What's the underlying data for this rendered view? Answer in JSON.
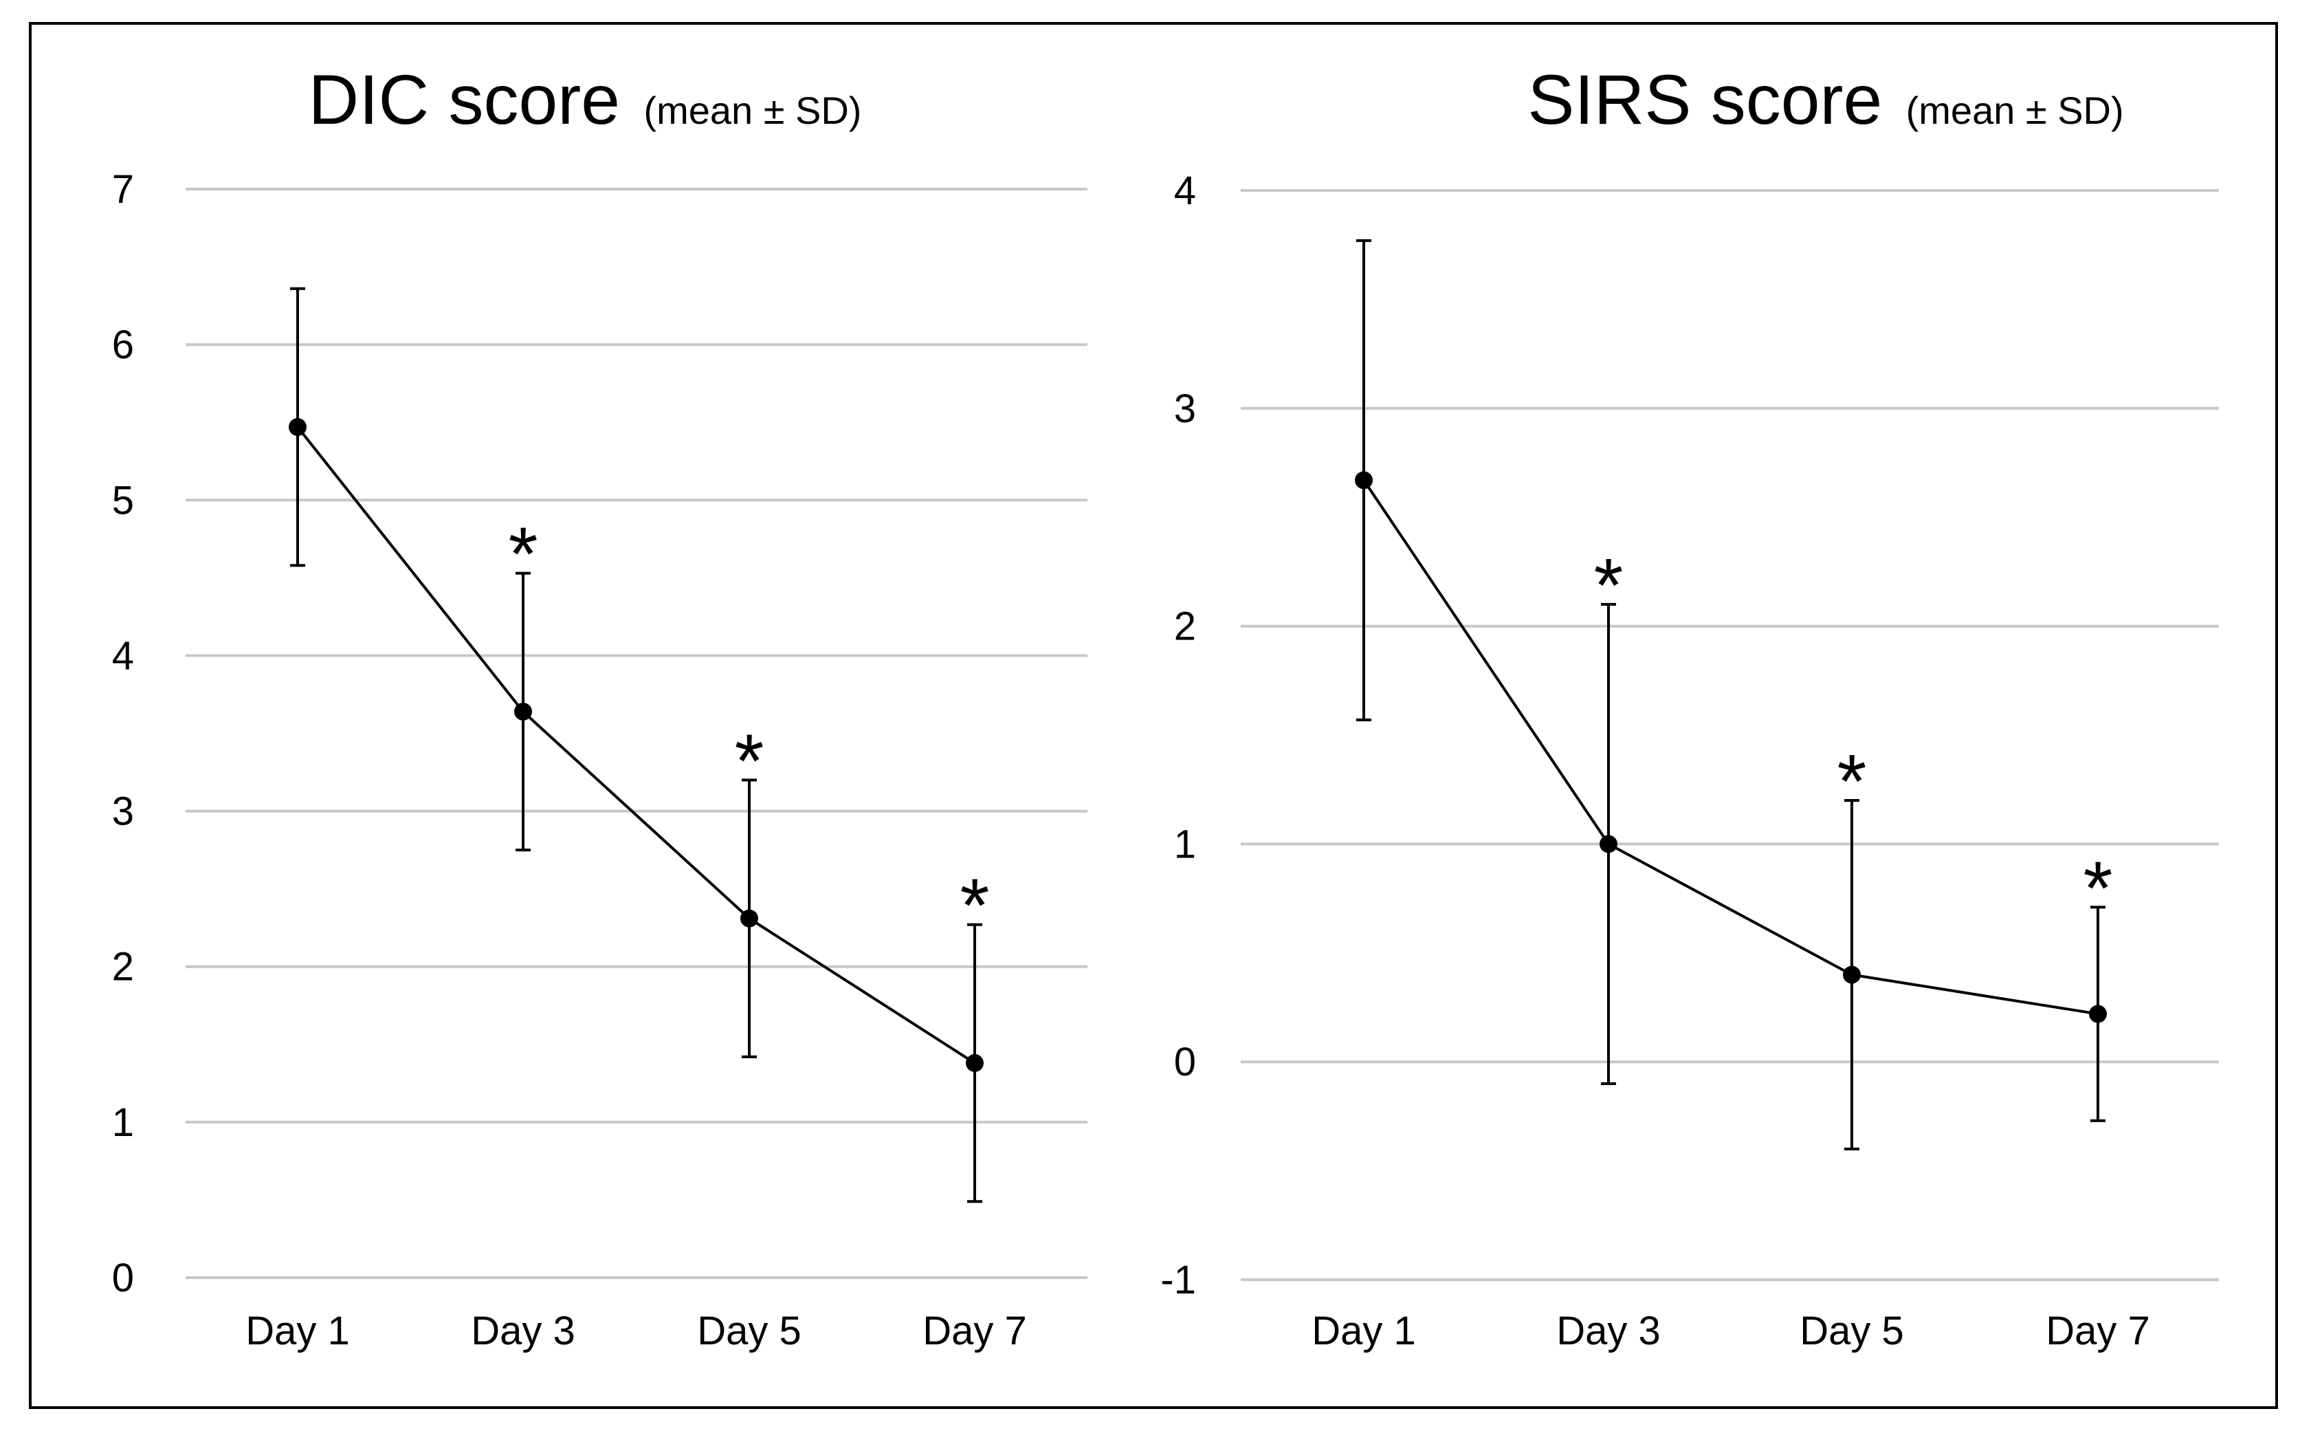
{
  "chart_data": [
    {
      "type": "line",
      "title": "DIC score",
      "title_suffix": "(mean ± SD)",
      "categories": [
        "Day 1",
        "Day 3",
        "Day 5",
        "Day 7"
      ],
      "values": [
        5.47,
        3.64,
        2.31,
        1.38
      ],
      "sd": [
        0.89,
        0.89,
        0.89,
        0.89
      ],
      "significance": [
        "",
        "*",
        "*",
        "*"
      ],
      "ylim": [
        0,
        7
      ],
      "yticks": [
        0,
        1,
        2,
        3,
        4,
        5,
        6,
        7
      ],
      "ytick_labels": [
        "0",
        "1",
        "2",
        "3",
        "4",
        "5",
        "6",
        "7"
      ],
      "xlabel": "",
      "ylabel": "",
      "grid": true
    },
    {
      "type": "line",
      "title": "SIRS score",
      "title_suffix": "(mean ± SD)",
      "categories": [
        "Day 1",
        "Day 3",
        "Day 5",
        "Day 7"
      ],
      "values": [
        2.67,
        1.0,
        0.4,
        0.22
      ],
      "sd": [
        1.1,
        1.1,
        0.8,
        0.49
      ],
      "significance": [
        "",
        "*",
        "*",
        "*"
      ],
      "ylim": [
        -1,
        4
      ],
      "yticks": [
        -1,
        0,
        1,
        2,
        3,
        4
      ],
      "ytick_labels": [
        "-1",
        "0",
        "1",
        "2",
        "3",
        "4"
      ],
      "xlabel": "",
      "ylabel": "",
      "grid": true
    }
  ],
  "colors": {
    "line": "#000000",
    "grid": "#c8c8c8",
    "frame": "#000000",
    "background": "#ffffff"
  }
}
